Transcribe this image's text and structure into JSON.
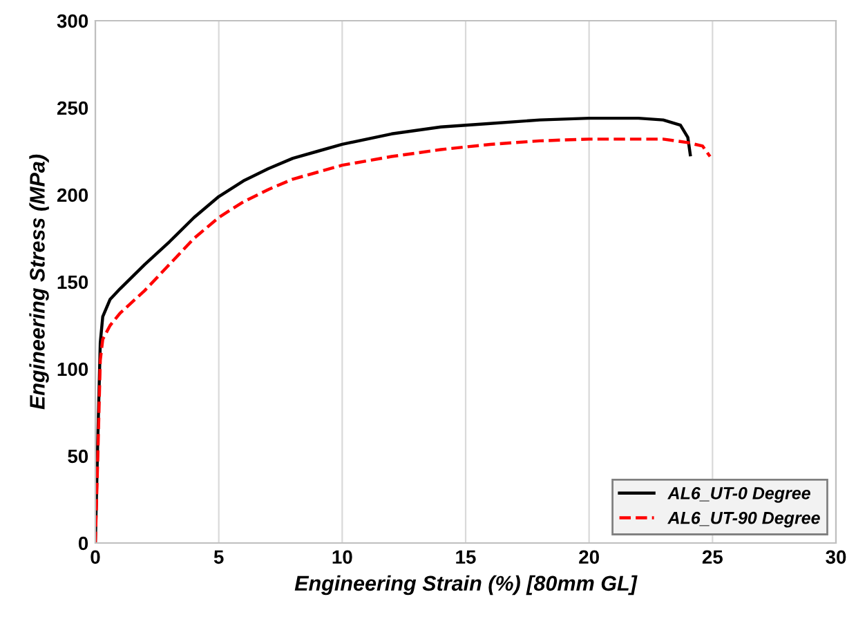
{
  "chart_data": {
    "type": "line",
    "xlabel": "Engineering Strain (%) [80mm GL]",
    "ylabel": "Engineering Stress (MPa)",
    "xlim": [
      0,
      30
    ],
    "ylim": [
      0,
      300
    ],
    "xticks": [
      0,
      5,
      10,
      15,
      20,
      25,
      30
    ],
    "yticks": [
      0,
      50,
      100,
      150,
      200,
      250,
      300
    ],
    "grid": "x",
    "legend": "bottom right",
    "series": [
      {
        "name": "AL6_UT-0 Degree",
        "color": "#000000",
        "line_style": "solid",
        "x": [
          0,
          0.1,
          0.2,
          0.3,
          0.6,
          1,
          2,
          3,
          4,
          5,
          6,
          7,
          8,
          9,
          10,
          12,
          14,
          16,
          18,
          20,
          22,
          23,
          23.7,
          24,
          24.1
        ],
        "values": [
          0,
          60,
          115,
          130,
          140,
          146,
          160,
          173,
          187,
          199,
          208,
          215,
          221,
          225,
          229,
          235,
          239,
          241,
          243,
          244,
          244,
          243,
          240,
          233,
          223
        ]
      },
      {
        "name": "AL6_UT-90 Degree",
        "color": "#ff0000",
        "line_style": "dashed",
        "x": [
          0,
          0.1,
          0.2,
          0.3,
          0.6,
          1,
          2,
          3,
          4,
          5,
          6,
          7,
          8,
          9,
          10,
          12,
          14,
          16,
          18,
          20,
          22,
          23,
          24,
          24.6,
          24.9
        ],
        "values": [
          0,
          50,
          105,
          117,
          125,
          132,
          145,
          160,
          175,
          187,
          196,
          203,
          209,
          213,
          217,
          222,
          226,
          229,
          231,
          232,
          232,
          232,
          230,
          228,
          222
        ]
      }
    ]
  }
}
